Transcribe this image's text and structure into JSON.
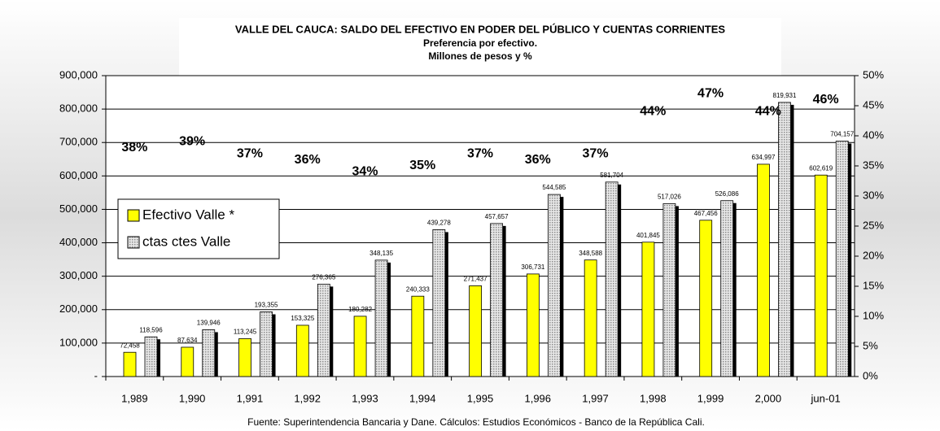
{
  "chart_data": {
    "type": "bar",
    "title": "VALLE DEL CAUCA: SALDO DEL EFECTIVO EN PODER DEL PÚBLICO Y CUENTAS CORRIENTES",
    "subtitle": [
      "Preferencia por efectivo.",
      "Millones de pesos y %"
    ],
    "categories": [
      "1,989",
      "1,990",
      "1,991",
      "1,992",
      "1,993",
      "1,994",
      "1,995",
      "1,996",
      "1,997",
      "1,998",
      "1,999",
      "2,000",
      "jun-01"
    ],
    "series": [
      {
        "name": "Efectivo Valle *",
        "color": "#ffff00",
        "values": [
          72458,
          87634,
          113245,
          153325,
          180282,
          240333,
          271437,
          306731,
          348588,
          401845,
          467456,
          634997,
          602619
        ],
        "value_labels": [
          "72,458",
          "87,634",
          "113,245",
          "153,325",
          "180,282",
          "240,333",
          "271,437",
          "306,731",
          "348,588",
          "401,845",
          "467,456",
          "634,997",
          "602,619"
        ]
      },
      {
        "name": "ctas ctes Valle",
        "color": "#c0c0c0",
        "values": [
          118596,
          139946,
          193355,
          276365,
          348135,
          439278,
          457657,
          544585,
          581704,
          517026,
          526086,
          819931,
          704157
        ],
        "value_labels": [
          "118,596",
          "139,946",
          "193,355",
          "276,365",
          "348,135",
          "439,278",
          "457,657",
          "544,585",
          "581,704",
          "517,026",
          "526,086",
          "819,931",
          "704,157"
        ]
      }
    ],
    "preference": {
      "axis": "y2",
      "values": [
        38,
        39,
        37,
        36,
        34,
        35,
        37,
        36,
        37,
        44,
        47,
        44,
        46
      ],
      "value_labels": [
        "38%",
        "39%",
        "37%",
        "36%",
        "34%",
        "35%",
        "37%",
        "36%",
        "37%",
        "44%",
        "47%",
        "44%",
        "46%"
      ]
    },
    "ylim": [
      0,
      900000
    ],
    "yticks": [
      {
        "value": 0,
        "label": "-"
      },
      {
        "value": 100000,
        "label": "100,000"
      },
      {
        "value": 200000,
        "label": "200,000"
      },
      {
        "value": 300000,
        "label": "300,000"
      },
      {
        "value": 400000,
        "label": "400,000"
      },
      {
        "value": 500000,
        "label": "500,000"
      },
      {
        "value": 600000,
        "label": "600,000"
      },
      {
        "value": 700000,
        "label": "700,000"
      },
      {
        "value": 800000,
        "label": "800,000"
      },
      {
        "value": 900000,
        "label": "900,000"
      }
    ],
    "y2lim": [
      0,
      50
    ],
    "y2ticks": [
      {
        "value": 0,
        "label": "0%"
      },
      {
        "value": 5,
        "label": "5%"
      },
      {
        "value": 10,
        "label": "10%"
      },
      {
        "value": 15,
        "label": "15%"
      },
      {
        "value": 20,
        "label": "20%"
      },
      {
        "value": 25,
        "label": "25%"
      },
      {
        "value": 30,
        "label": "30%"
      },
      {
        "value": 35,
        "label": "35%"
      },
      {
        "value": 40,
        "label": "40%"
      },
      {
        "value": 45,
        "label": "45%"
      },
      {
        "value": 50,
        "label": "50%"
      }
    ],
    "grid": true,
    "legend": "left",
    "footnote": "Fuente: Superintendencia Bancaria y Dane. Cálculos: Estudios Económicos - Banco de la República Cali."
  }
}
